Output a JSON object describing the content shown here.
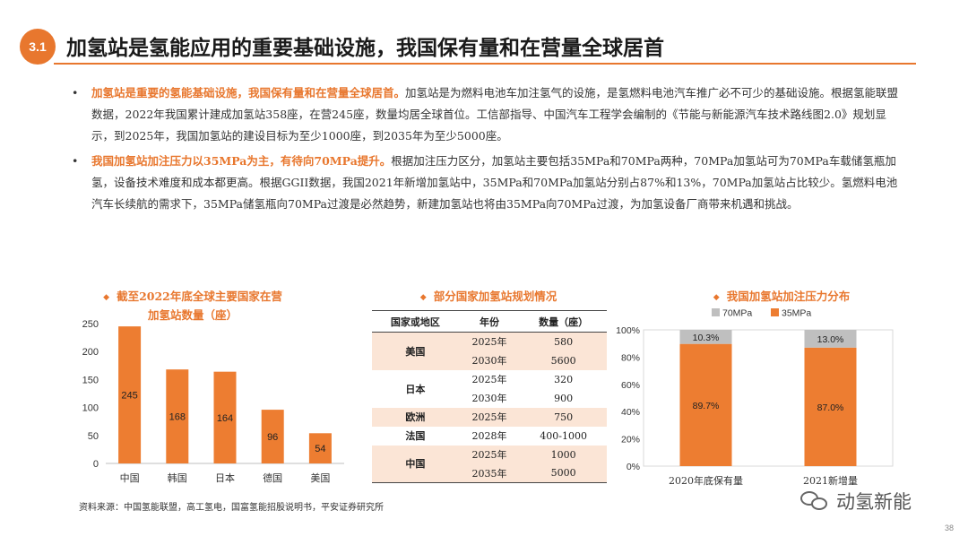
{
  "header": {
    "badge": "3.1",
    "title": "加氢站是氢能应用的重要基础设施，我国保有量和在营量全球居首"
  },
  "bullets": [
    {
      "highlight": "加氢站是重要的氢能基础设施，我国保有量和在营量全球居首。",
      "text": "加氢站是为燃料电池车加注氢气的设施，是氢燃料电池汽车推广必不可少的基础设施。根据氢能联盟数据，2022年我国累计建成加氢站358座，在营245座，数量均居全球首位。工信部指导、中国汽车工程学会编制的《节能与新能源汽车技术路线图2.0》规划显示，到2025年，我国加氢站的建设目标为至少1000座，到2035年为至少5000座。"
    },
    {
      "highlight": "我国加氢站加注压力以35MPa为主，有待向70MPa提升。",
      "text": "根据加注压力区分，加氢站主要包括35MPa和70MPa两种，70MPa加氢站可为70MPa车载储氢瓶加氢，设备技术难度和成本都更高。根据GGII数据，我国2021年新增加氢站中，35MPa和70MPa加氢站分别占87%和13%，70MPa加氢站占比较少。氢燃料电池汽车长续航的需求下，35MPa储氢瓶向70MPa过渡是必然趋势，新建加氢站也将由35MPa向70MPa过渡，为加氢设备厂商带来机遇和挑战。"
    }
  ],
  "section1": {
    "title_line1": "截至2022年底全球主要国家在营",
    "title_line2": "加氢站数量（座）",
    "diamond": "◆"
  },
  "section2": {
    "title": "部分国家加氢站规划情况",
    "diamond": "◆"
  },
  "section3": {
    "title": "我国加氢站加注压力分布",
    "diamond": "◆"
  },
  "chart_data": [
    {
      "type": "bar",
      "title": "截至2022年底全球主要国家在营加氢站数量（座）",
      "categories": [
        "中国",
        "韩国",
        "日本",
        "德国",
        "美国"
      ],
      "values": [
        245,
        168,
        164,
        96,
        54
      ],
      "ylim": [
        0,
        250
      ],
      "yticks": [
        0,
        50,
        100,
        150,
        200,
        250
      ],
      "color": "#ed7d31",
      "grid": false
    },
    {
      "type": "bar",
      "stacked": true,
      "title": "我国加氢站加注压力分布",
      "categories": [
        "2020年底保有量",
        "2021新增量"
      ],
      "series": [
        {
          "name": "35MPa",
          "values": [
            89.7,
            87.0
          ],
          "labels": [
            "89.7%",
            "87.0%"
          ],
          "color": "#ed7d31"
        },
        {
          "name": "70MPa",
          "values": [
            10.3,
            13.0
          ],
          "labels": [
            "10.3%",
            "13.0%"
          ],
          "color": "#bfbfbf"
        }
      ],
      "ylim": [
        0,
        100
      ],
      "yticks": [
        "0%",
        "20%",
        "40%",
        "60%",
        "80%",
        "100%"
      ],
      "legend": "top",
      "grid": false
    }
  ],
  "table": {
    "headers": [
      "国家或地区",
      "年份",
      "数量（座）"
    ],
    "rows": [
      {
        "region": "美国",
        "year": "2025年",
        "count": "580",
        "shade": true,
        "span": 2
      },
      {
        "region": "",
        "year": "2030年",
        "count": "5600",
        "shade": true,
        "span": 0
      },
      {
        "region": "日本",
        "year": "2025年",
        "count": "320",
        "shade": false,
        "span": 2
      },
      {
        "region": "",
        "year": "2030年",
        "count": "900",
        "shade": false,
        "span": 0
      },
      {
        "region": "欧洲",
        "year": "2025年",
        "count": "750",
        "shade": true,
        "span": 1
      },
      {
        "region": "法国",
        "year": "2028年",
        "count": "400-1000",
        "shade": false,
        "span": 1
      },
      {
        "region": "中国",
        "year": "2025年",
        "count": "1000",
        "shade": true,
        "span": 2
      },
      {
        "region": "",
        "year": "2035年",
        "count": "5000",
        "shade": true,
        "span": 0
      }
    ]
  },
  "source": "资料来源：中国氢能联盟，高工氢电，国富氢能招股说明书，平安证券研究所",
  "watermark": "动氢新能",
  "page_number": "38"
}
